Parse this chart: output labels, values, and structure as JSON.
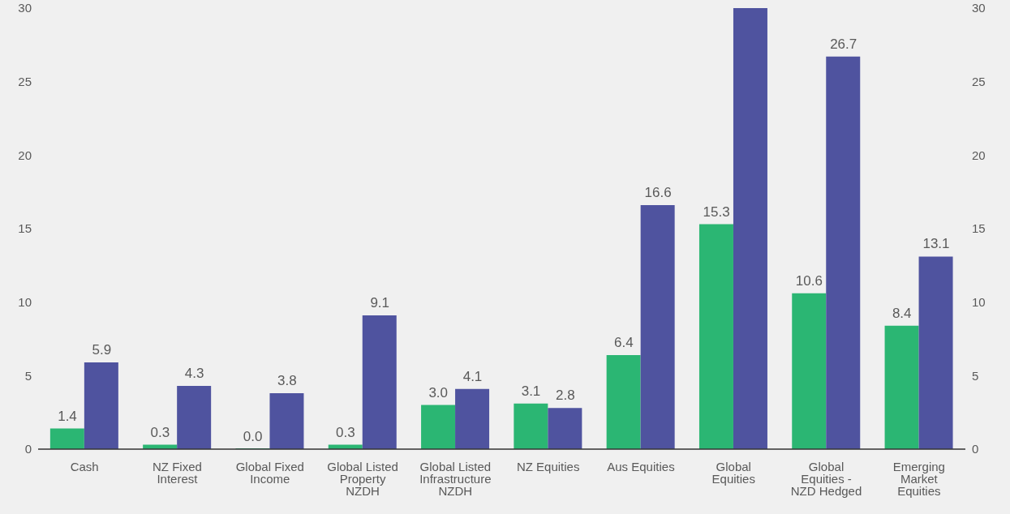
{
  "chart_data": {
    "type": "bar",
    "categories": [
      "Cash",
      "NZ Fixed Interest",
      "Global Fixed Income",
      "Global Listed Property NZDH",
      "Global Listed Infrastructure NZDH",
      "NZ Equities",
      "Aus Equities",
      "Global Equities",
      "Global Equities - NZD Hedged",
      "Emerging Market Equities"
    ],
    "series": [
      {
        "color": "#2bb673",
        "values": [
          1.4,
          0.3,
          0.0,
          0.3,
          3.0,
          3.1,
          6.4,
          15.3,
          10.6,
          8.4
        ],
        "value_labels": [
          "1.4",
          "0.3",
          "0.0",
          "0.3",
          "3.0",
          "3.1",
          "6.4",
          "15.3",
          "10.6",
          "8.4"
        ]
      },
      {
        "color": "#4f539f",
        "values": [
          5.9,
          4.3,
          3.8,
          9.1,
          4.1,
          2.8,
          16.6,
          30,
          26.7,
          13.1
        ],
        "value_labels": [
          "5.9",
          "4.3",
          "3.8",
          "9.1",
          "4.1",
          "2.8",
          "16.6",
          null,
          "26.7",
          "13.1"
        ]
      }
    ],
    "ylim": [
      0,
      30
    ],
    "yticks": [
      0,
      5,
      10,
      15,
      20,
      25,
      30
    ],
    "y2lim": [
      0,
      30
    ],
    "y2ticks": [
      0,
      5,
      10,
      15,
      20,
      25,
      30
    ],
    "grid": false,
    "legend": false
  }
}
